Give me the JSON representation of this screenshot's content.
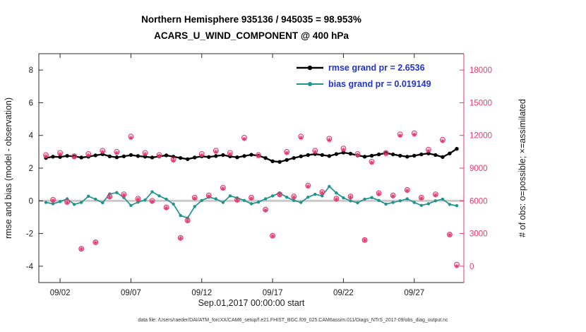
{
  "colors": {
    "rmse": "#000000",
    "bias": "#1f948c",
    "obs": "#e23a6e",
    "legend_text": "#2233cc",
    "axis": "#2b2b2b",
    "zero_line": "#c9c9c9"
  },
  "title": {
    "line1": "Northern Hemisphere 935136 / 945035 = 98.953%",
    "line2": "ACARS_U_WIND_COMPONENT @ 400 hPa"
  },
  "legend": [
    {
      "label": "rmse grand pr = 2.6536",
      "series": "rmse"
    },
    {
      "label": "bias grand pr = 0.019149",
      "series": "bias"
    }
  ],
  "axes": {
    "x": {
      "min": 0.5,
      "max": 30.5,
      "label": "Sep.01,2017 00:00:00 start",
      "ticks": [
        {
          "v": 2,
          "label": "09/02"
        },
        {
          "v": 7,
          "label": "09/07"
        },
        {
          "v": 12,
          "label": "09/12"
        },
        {
          "v": 17,
          "label": "09/17"
        },
        {
          "v": 22,
          "label": "09/22"
        },
        {
          "v": 27,
          "label": "09/27"
        }
      ]
    },
    "y_left": {
      "min": -5,
      "max": 9,
      "label": "rmse and bias (model - observation)",
      "ticks": [
        -4,
        -2,
        0,
        2,
        4,
        6,
        8
      ]
    },
    "y_right": {
      "label": "# of obs: o=possible; ×=assimilated",
      "ticks": [
        0,
        3000,
        6000,
        9000,
        12000,
        15000,
        18000
      ],
      "per_left_unit": 1500,
      "left_value_at_zero": -4
    }
  },
  "footer": "data file: /Users/raeder/DAI/ATM_forcXX/CAM6_setup/f.e21.FHIST_BGC.f09_025.CAM6assim.011/Diags_NTrS_2017-09/obs_diag_output.nc",
  "chart_data": {
    "type": "line+scatter",
    "title": "Northern Hemisphere 935136 / 945035 = 98.953% | ACARS_U_WIND_COMPONENT @ 400 hPa",
    "xlabel": "Sep.01,2017 00:00:00 start",
    "ylabel_left": "rmse and bias (model - observation)",
    "ylabel_right": "# of obs: o=possible; ×=assimilated",
    "xlim": [
      0.5,
      30.5
    ],
    "ylim_left": [
      -5,
      9
    ],
    "ylim_right": [
      -1500,
      19500
    ],
    "grid": false,
    "legend_position": "top-right-inside",
    "x": [
      1,
      1.5,
      2,
      2.5,
      3,
      3.5,
      4,
      4.5,
      5,
      5.5,
      6,
      6.5,
      7,
      7.5,
      8,
      8.5,
      9,
      9.5,
      10,
      10.5,
      11,
      11.5,
      12,
      12.5,
      13,
      13.5,
      14,
      14.5,
      15,
      15.5,
      16,
      16.5,
      17,
      17.5,
      18,
      18.5,
      19,
      19.5,
      20,
      20.5,
      21,
      21.5,
      22,
      22.5,
      23,
      23.5,
      24,
      24.5,
      25,
      25.5,
      26,
      26.5,
      27,
      27.5,
      28,
      28.5,
      29,
      29.5,
      30
    ],
    "series": [
      {
        "name": "rmse",
        "axis": "left",
        "grand_mean": 2.6536,
        "values": [
          2.62,
          2.7,
          2.68,
          2.75,
          2.72,
          2.65,
          2.7,
          2.78,
          2.85,
          2.72,
          2.66,
          2.72,
          2.8,
          2.74,
          2.7,
          2.65,
          2.72,
          2.78,
          2.7,
          2.62,
          2.55,
          2.65,
          2.72,
          2.68,
          2.74,
          2.8,
          2.72,
          2.66,
          2.74,
          2.82,
          2.76,
          2.62,
          2.42,
          2.38,
          2.5,
          2.62,
          2.72,
          2.8,
          2.86,
          2.8,
          2.74,
          2.86,
          2.95,
          2.88,
          2.78,
          2.7,
          2.76,
          2.84,
          2.92,
          2.84,
          2.76,
          2.7,
          2.76,
          2.84,
          2.9,
          2.8,
          2.68,
          2.9,
          3.18
        ]
      },
      {
        "name": "bias",
        "axis": "left",
        "grand_mean": 0.019149,
        "values": [
          -0.1,
          -0.18,
          -0.05,
          0.12,
          -0.22,
          -0.1,
          0.28,
          0.1,
          -0.12,
          0.42,
          0.5,
          0.2,
          -0.28,
          -0.08,
          0.05,
          0.55,
          0.3,
          0.1,
          -0.2,
          -0.9,
          -1.05,
          -0.35,
          0.02,
          0.22,
          0.12,
          -0.1,
          0.3,
          0.18,
          0.02,
          -0.18,
          -0.08,
          0.12,
          0.3,
          0.48,
          0.22,
          0.02,
          -0.1,
          0.22,
          0.4,
          0.3,
          0.88,
          0.48,
          0.18,
          0.0,
          -0.12,
          0.1,
          0.2,
          0.02,
          -0.2,
          -0.1,
          0.0,
          0.12,
          -0.1,
          -0.28,
          -0.18,
          0.0,
          0.1,
          -0.22,
          -0.3
        ]
      }
    ],
    "scatter": [
      {
        "name": "possible",
        "marker": "circle",
        "axis": "right",
        "values": [
          10200,
          6100,
          10400,
          5900,
          10100,
          1600,
          10300,
          2200,
          10600,
          6400,
          10500,
          6600,
          11900,
          6200,
          10400,
          6000,
          10200,
          5400,
          9800,
          2600,
          4200,
          6300,
          10300,
          6500,
          10600,
          7200,
          10400,
          6100,
          11800,
          6300,
          10200,
          5200,
          2800,
          6600,
          10500,
          6400,
          11900,
          7400,
          10600,
          6800,
          11700,
          6200,
          10800,
          6400,
          10300,
          2400,
          9600,
          6700,
          10400,
          6500,
          12100,
          7000,
          12200,
          6300,
          10700,
          6600,
          11600,
          2900,
          150
        ]
      },
      {
        "name": "assimilated",
        "marker": "asterisk",
        "axis": "right",
        "values": [
          10090,
          6030,
          10290,
          5830,
          9990,
          1570,
          10190,
          2170,
          10490,
          6330,
          10390,
          6530,
          11780,
          6130,
          10290,
          5930,
          10090,
          5340,
          9690,
          2560,
          4150,
          6230,
          10190,
          6430,
          10490,
          7120,
          10290,
          6030,
          11680,
          6230,
          10090,
          5140,
          2760,
          6530,
          10390,
          6330,
          11780,
          7320,
          10490,
          6730,
          11580,
          6130,
          10690,
          6330,
          10190,
          2370,
          9500,
          6630,
          10290,
          6430,
          11980,
          6930,
          12080,
          6230,
          10590,
          6530,
          11480,
          2870,
          0
        ]
      }
    ]
  }
}
